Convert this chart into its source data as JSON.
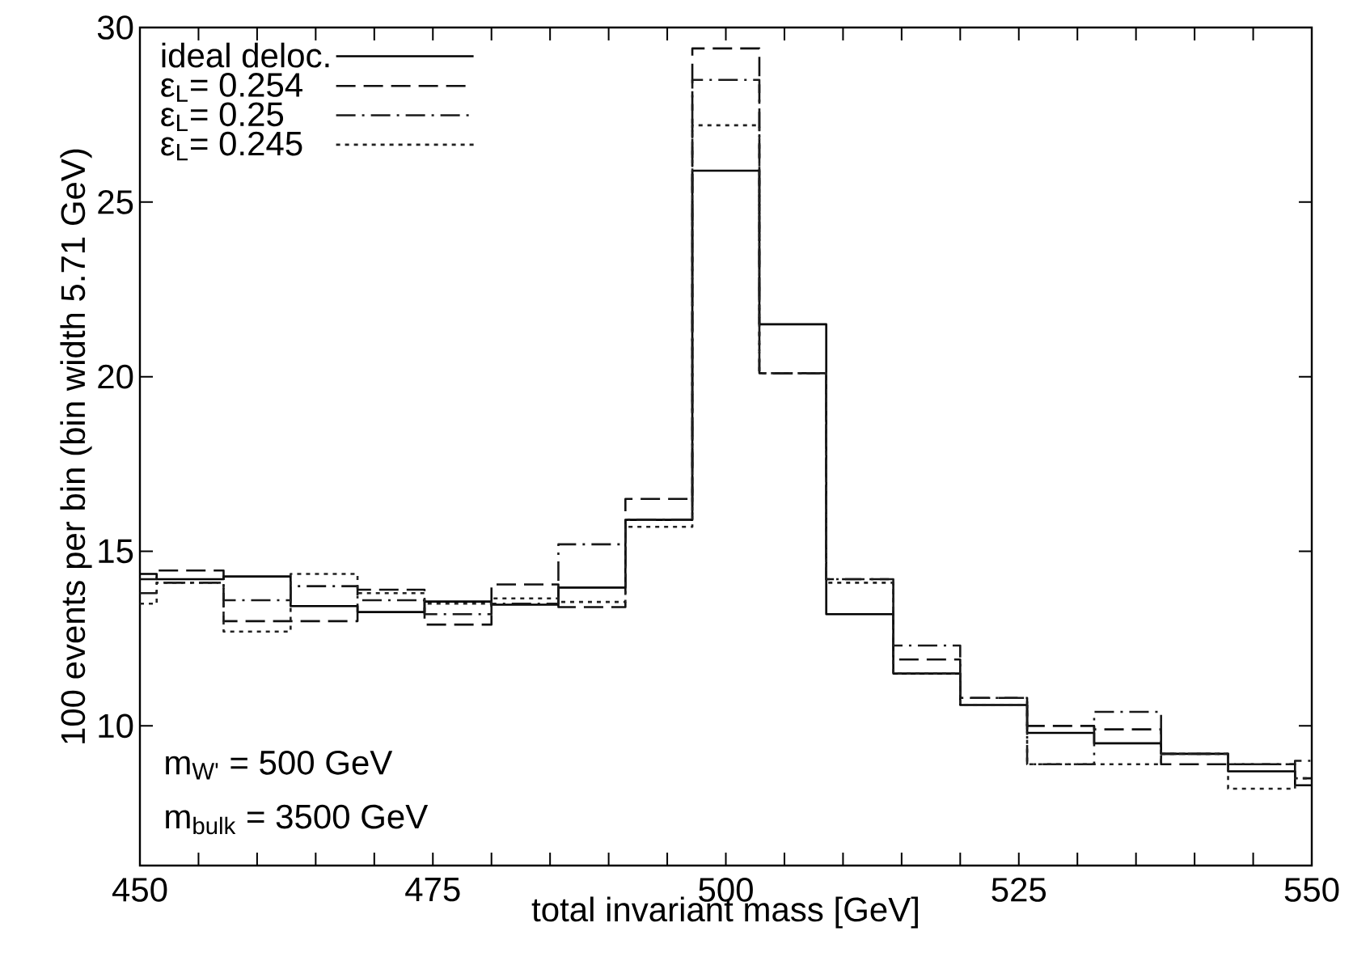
{
  "chart_data": {
    "type": "histogram",
    "xlabel": "total invariant mass [GeV]",
    "ylabel": "100 events per bin (bin width 5.71 GeV)",
    "bins": [
      450,
      451.43,
      457.14,
      462.86,
      468.57,
      474.29,
      480,
      485.71,
      491.43,
      497.14,
      502.86,
      508.57,
      514.29,
      520,
      525.71,
      531.43,
      537.14,
      542.86,
      548.57,
      550
    ],
    "series": [
      {
        "name": "ideal deloc.",
        "color": "#000000",
        "line_style": "solid",
        "values": [
          14.35,
          14.2,
          14.28,
          13.43,
          13.26,
          13.56,
          13.47,
          13.96,
          15.9,
          25.9,
          21.5,
          13.2,
          11.5,
          10.6,
          9.8,
          9.5,
          9.2,
          8.7,
          8.3
        ]
      },
      {
        "name": "ε$_{L}$= 0.254",
        "color": "#111111",
        "line_style": "dashed",
        "values": [
          14.2,
          14.45,
          13.0,
          13.0,
          13.9,
          12.9,
          14.05,
          13.4,
          16.5,
          29.4,
          20.1,
          14.2,
          11.9,
          10.8,
          10.0,
          9.9,
          8.9,
          8.9,
          8.5
        ]
      },
      {
        "name": "ε$_{L}$= 0.25",
        "color": "#1a1a1a",
        "line_style": "dashdot",
        "values": [
          13.8,
          14.1,
          13.6,
          14.0,
          13.6,
          13.2,
          13.5,
          15.2,
          15.9,
          28.5,
          20.1,
          14.2,
          12.3,
          10.8,
          8.9,
          10.4,
          9.2,
          8.9,
          9.0
        ]
      },
      {
        "name": "ε$_{L}$= 0.245",
        "color": "#222222",
        "line_style": "dotted",
        "values": [
          13.5,
          14.1,
          12.7,
          14.35,
          13.8,
          13.5,
          13.65,
          13.55,
          15.7,
          27.2,
          20.1,
          14.1,
          11.5,
          10.6,
          8.9,
          8.9,
          9.2,
          8.2,
          8.5
        ]
      }
    ],
    "xlim": [
      450,
      550
    ],
    "xticks": [
      450,
      {
        "value": 455,
        "label": null
      },
      {
        "value": 460,
        "label": null
      },
      {
        "value": 465,
        "label": null
      },
      {
        "value": 470,
        "label": null
      },
      475,
      {
        "value": 480,
        "label": null
      },
      {
        "value": 485,
        "label": null
      },
      {
        "value": 490,
        "label": null
      },
      {
        "value": 495,
        "label": null
      },
      500,
      {
        "value": 505,
        "label": null
      },
      {
        "value": 510,
        "label": null
      },
      {
        "value": 515,
        "label": null
      },
      {
        "value": 520,
        "label": null
      },
      525,
      {
        "value": 530,
        "label": null
      },
      {
        "value": 535,
        "label": null
      },
      {
        "value": 540,
        "label": null
      },
      {
        "value": 545,
        "label": null
      },
      550
    ],
    "ylim": [
      6,
      30
    ],
    "yticks": [
      10,
      15,
      20,
      25,
      30
    ],
    "legend": "top left",
    "grid": false,
    "annotations": [
      "m$_{W'}$  = 500 GeV",
      "m$_{bulk}$ = 3500 GeV"
    ]
  }
}
